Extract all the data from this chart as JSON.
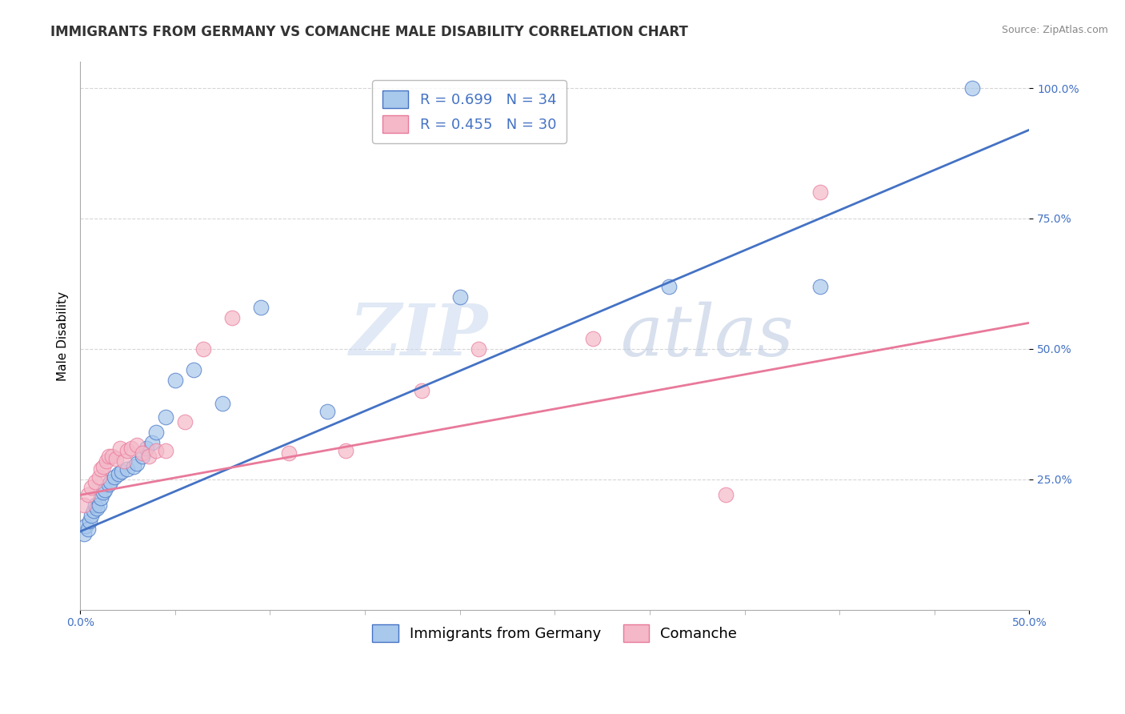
{
  "title": "IMMIGRANTS FROM GERMANY VS COMANCHE MALE DISABILITY CORRELATION CHART",
  "source_text": "Source: ZipAtlas.com",
  "ylabel": "Male Disability",
  "legend_label_1": "Immigrants from Germany",
  "legend_label_2": "Comanche",
  "R1": 0.699,
  "N1": 34,
  "R2": 0.455,
  "N2": 30,
  "color_blue": "#A8C8EC",
  "color_pink": "#F4B8C8",
  "line_color_blue": "#4472C4",
  "line_color_pink": "#E8799A",
  "watermark_color": "#C8D8EC",
  "xlim": [
    0.0,
    0.5
  ],
  "ylim": [
    0.0,
    1.05
  ],
  "xtick_show": [
    0.0,
    0.5
  ],
  "xtick_labels": [
    "0.0%",
    "50.0%"
  ],
  "yticks": [
    0.25,
    0.5,
    0.75,
    1.0
  ],
  "ytick_labels": [
    "25.0%",
    "50.0%",
    "75.0%",
    "100.0%"
  ],
  "title_fontsize": 12,
  "axis_label_fontsize": 11,
  "tick_fontsize": 10,
  "legend_fontsize": 13,
  "background_color": "#FFFFFF",
  "grid_color": "#CCCCCC",
  "blue_scatter_x": [
    0.002,
    0.003,
    0.004,
    0.005,
    0.006,
    0.007,
    0.008,
    0.009,
    0.01,
    0.011,
    0.012,
    0.013,
    0.015,
    0.016,
    0.018,
    0.02,
    0.022,
    0.025,
    0.028,
    0.03,
    0.033,
    0.035,
    0.038,
    0.04,
    0.045,
    0.05,
    0.06,
    0.075,
    0.095,
    0.13,
    0.2,
    0.31,
    0.39,
    0.47
  ],
  "blue_scatter_y": [
    0.145,
    0.16,
    0.155,
    0.17,
    0.18,
    0.19,
    0.2,
    0.195,
    0.2,
    0.215,
    0.225,
    0.23,
    0.24,
    0.245,
    0.255,
    0.26,
    0.265,
    0.27,
    0.275,
    0.28,
    0.295,
    0.31,
    0.32,
    0.34,
    0.37,
    0.44,
    0.46,
    0.395,
    0.58,
    0.38,
    0.6,
    0.62,
    0.62,
    1.0
  ],
  "pink_scatter_x": [
    0.002,
    0.004,
    0.006,
    0.008,
    0.01,
    0.011,
    0.012,
    0.014,
    0.015,
    0.017,
    0.019,
    0.021,
    0.023,
    0.025,
    0.027,
    0.03,
    0.033,
    0.036,
    0.04,
    0.045,
    0.055,
    0.065,
    0.08,
    0.11,
    0.14,
    0.18,
    0.21,
    0.27,
    0.34,
    0.39
  ],
  "pink_scatter_y": [
    0.2,
    0.22,
    0.235,
    0.245,
    0.255,
    0.27,
    0.275,
    0.285,
    0.295,
    0.295,
    0.29,
    0.31,
    0.285,
    0.305,
    0.31,
    0.315,
    0.3,
    0.295,
    0.305,
    0.305,
    0.36,
    0.5,
    0.56,
    0.3,
    0.305,
    0.42,
    0.5,
    0.52,
    0.22,
    0.8
  ],
  "blue_line_x0": 0.0,
  "blue_line_y0": 0.15,
  "blue_line_x1": 0.5,
  "blue_line_y1": 0.92,
  "pink_line_x0": 0.0,
  "pink_line_y0": 0.22,
  "pink_line_x1": 0.5,
  "pink_line_y1": 0.55
}
